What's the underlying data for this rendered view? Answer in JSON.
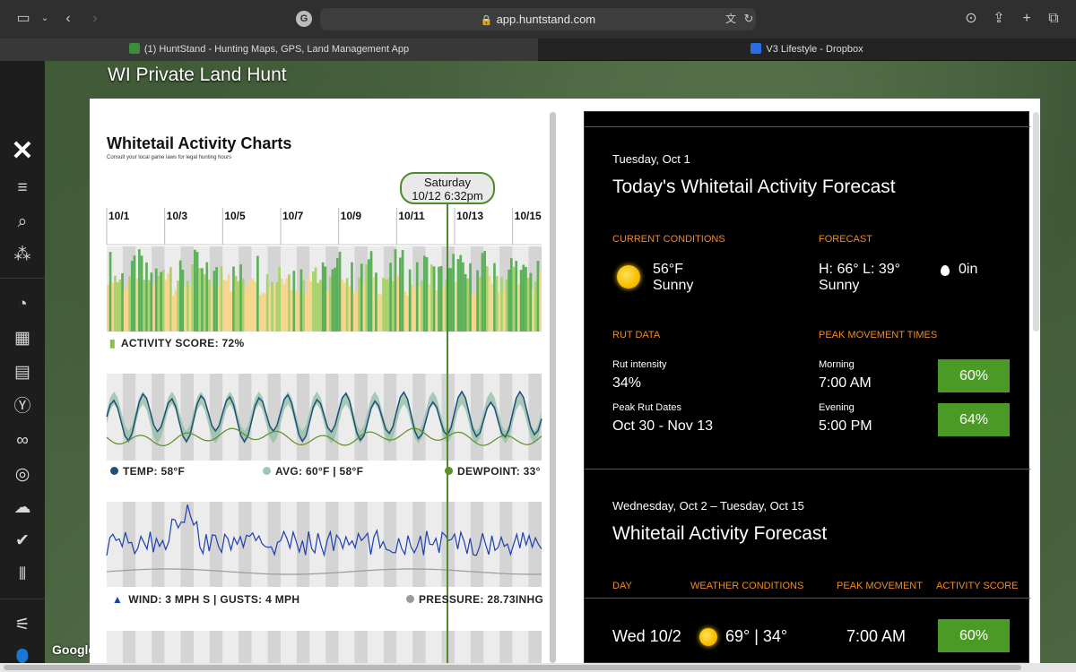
{
  "browser": {
    "url": "app.huntstand.com",
    "tabs": [
      {
        "label": "(1) HuntStand - Hunting Maps, GPS, Land Management App"
      },
      {
        "label": "V3 Lifestyle - Dropbox"
      }
    ]
  },
  "app": {
    "hunt_name": "WI Private Land Hunt",
    "map_attribution": "Google",
    "sidebar": [
      "menu-icon",
      "search-icon",
      "hunt-areas-icon",
      "pie-icon",
      "calendar-icon",
      "journal-icon",
      "deer-icon",
      "binoculars-icon",
      "target-icon",
      "weather-icon",
      "check-icon",
      "stats-icon",
      "sliders-icon",
      "add-user-icon"
    ]
  },
  "charts": {
    "title": "Whitetail Activity Charts",
    "subtitle": "Consult your local game laws for legal hunting hours",
    "dates": [
      "10/1",
      "10/3",
      "10/5",
      "10/7",
      "10/9",
      "10/11",
      "10/13",
      "10/15"
    ],
    "marker": {
      "day": "Saturday",
      "datetime": "10/12 6:32pm"
    },
    "activity_legend": "ACTIVITY SCORE: 72%",
    "temp_legend": "TEMP: 58°F",
    "avg_legend": "AVG: 60°F |  58°F",
    "dewpoint_legend": "DEWPOINT: 33°",
    "wind_legend": "WIND: 3 MPH S | GUSTS: 4 MPH",
    "pressure_legend": "PRESSURE: 28.73INHG",
    "colors": {
      "marker": "#4e8a2b",
      "temp": "#1f4e79",
      "avg": "#9bc8b0",
      "dew": "#5a8f2a",
      "wind": "#1f3fb0"
    }
  },
  "forecast": {
    "today_date": "Tuesday, Oct 1",
    "today_title": "Today's Whitetail Activity Forecast",
    "current_label": "CURRENT CONDITIONS",
    "forecast_label": "FORECAST",
    "current_temp": "56°F",
    "current_cond": "Sunny",
    "forecast_temp": "H: 66° L: 39°",
    "forecast_cond": "Sunny",
    "precip": "0in",
    "rut_label": "RUT DATA",
    "peak_label": "PEAK MOVEMENT TIMES",
    "rut_intensity_label": "Rut intensity",
    "rut_intensity": "34%",
    "peak_rut_label": "Peak Rut Dates",
    "peak_rut": "Oct 30 - Nov 13",
    "morning_label": "Morning",
    "morning_time": "7:00 AM",
    "morning_pct": "60%",
    "evening_label": "Evening",
    "evening_time": "5:00 PM",
    "evening_pct": "64%",
    "range_date": "Wednesday, Oct 2 – Tuesday, Oct 15",
    "range_title": "Whitetail Activity Forecast",
    "cols": {
      "day": "DAY",
      "weather": "WEATHER CONDITIONS",
      "peak": "PEAK MOVEMENT",
      "score": "ACTIVITY SCORE"
    },
    "rows": [
      {
        "day": "Wed 10/2",
        "temps": "69° | 34°",
        "peak": "7:00 AM",
        "score": "60%"
      }
    ]
  }
}
